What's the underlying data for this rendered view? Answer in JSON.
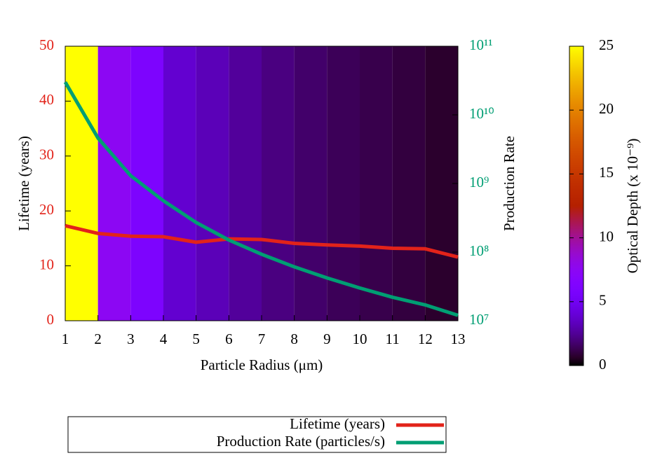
{
  "chart_data": {
    "type": "line",
    "xlabel": "Particle Radius (μm)",
    "ylabel": "Lifetime (years)",
    "y2label": "Production Rate",
    "x": [
      1,
      2,
      3,
      4,
      5,
      6,
      7,
      8,
      9,
      10,
      11,
      12,
      13
    ],
    "xlim": [
      1,
      13
    ],
    "xticks": [
      1,
      2,
      3,
      4,
      5,
      6,
      7,
      8,
      9,
      10,
      11,
      12,
      13
    ],
    "ylim": [
      0,
      50
    ],
    "yticks": [
      0,
      10,
      20,
      30,
      40,
      50
    ],
    "y2lim": [
      10000000,
      100000000000
    ],
    "y2log": true,
    "y2ticks": [
      {
        "value": 10000000,
        "label": "10⁷"
      },
      {
        "value": 100000000,
        "label": "10⁸"
      },
      {
        "value": 1000000000,
        "label": "10⁹"
      },
      {
        "value": 10000000000,
        "label": "10¹⁰"
      },
      {
        "value": 100000000000,
        "label": "10¹¹"
      }
    ],
    "series": [
      {
        "name": "Lifetime (years)",
        "color": "#e2231a",
        "values": [
          17.3,
          15.9,
          15.4,
          15.3,
          14.3,
          14.9,
          14.8,
          14.1,
          13.8,
          13.6,
          13.2,
          13.1,
          11.6
        ]
      },
      {
        "name": "Production Rate (particles/s)",
        "color": "#009e73",
        "axis": "y2",
        "values": [
          30000000000,
          4600000000,
          1300000000,
          560000000,
          270000000,
          150000000,
          93000000,
          61000000,
          42000000,
          30000000,
          22000000,
          17000000,
          12000000
        ]
      }
    ],
    "background": {
      "bins": [
        1,
        2,
        3,
        4,
        5,
        6,
        7,
        8,
        9,
        10,
        11,
        12,
        13
      ],
      "values": [
        25,
        7.5,
        6,
        3.8,
        3.2,
        2.6,
        2.1,
        1.7,
        1.4,
        1.2,
        1.0,
        0.7
      ]
    },
    "colorbar": {
      "label": "Optical Depth (x 10⁻⁹)",
      "lim": [
        0,
        25
      ],
      "ticks": [
        0,
        5,
        10,
        15,
        20,
        25
      ],
      "palette": "rgbformulae 7,5,15"
    },
    "legend": "bottom"
  }
}
